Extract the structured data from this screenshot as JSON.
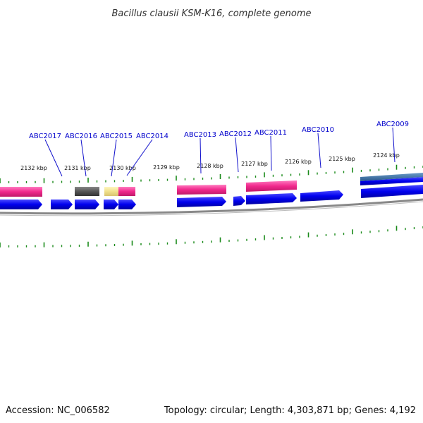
{
  "title": "Bacillus clausii KSM-K16, complete genome",
  "footer": {
    "accession": "Accession: NC_006582",
    "topology": "Topology: circular; Length: 4,303,871 bp; Genes: 4,192"
  },
  "colors": {
    "tick": "#1a8a1a",
    "gene_blue": "#0000ee",
    "feature_pink": "#f0288c",
    "feature_gray": "#555555",
    "feature_yellow": "#f0e08c",
    "feature_steel": "#3a6a9a",
    "backbone": "#888888",
    "label": "#0000cc"
  },
  "tick_labels": [
    "2132 kbp",
    "2131 kbp",
    "2130 kbp",
    "2129 kbp",
    "2128 kbp",
    "2127 kbp",
    "2126 kbp",
    "2125 kbp",
    "2124 kbp"
  ],
  "gene_labels": [
    "ABC2017",
    "ABC2016",
    "ABC2015",
    "ABC2014",
    "ABC2013",
    "ABC2012",
    "ABC2011",
    "ABC2010",
    "ABC2009"
  ]
}
